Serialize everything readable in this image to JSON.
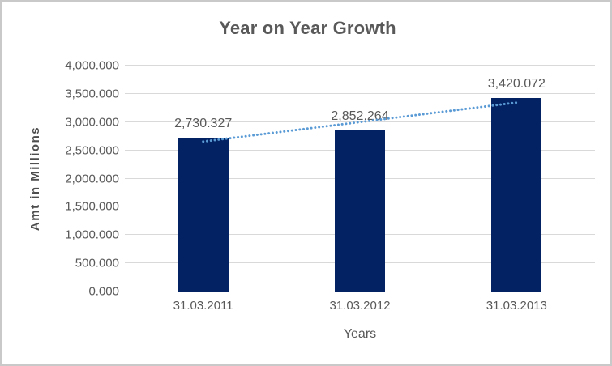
{
  "frame": {
    "background": "#ffffff",
    "border_color": "#c9c9c9"
  },
  "chart_data": {
    "type": "bar",
    "title": "Year on Year Growth",
    "categories": [
      "31.03.2011",
      "31.03.2012",
      "31.03.2013"
    ],
    "series": [
      {
        "name": "Amt in Millions",
        "values": [
          2730.327,
          2852.264,
          3420.072
        ]
      }
    ],
    "data_labels": [
      "2,730.327",
      "2,852.264",
      "3,420.072"
    ],
    "xlabel": "Years",
    "ylabel": "Amt in Millions",
    "ylim": [
      0,
      4000
    ],
    "ytick_interval": 500,
    "ytick_labels": [
      "0.000",
      "500.000",
      "1,000.000",
      "1,500.000",
      "2,000.000",
      "2,500.000",
      "3,000.000",
      "3,500.000",
      "4,000.000"
    ],
    "grid": true,
    "legend_position": "none",
    "bar_color": "#032263",
    "gridline_color": "#d9d9d9",
    "axis_line_color": "#bfbfbf",
    "text_color": "#595959",
    "trendline": {
      "type": "linear",
      "style": "dotted",
      "color": "#5b9bd5"
    }
  }
}
